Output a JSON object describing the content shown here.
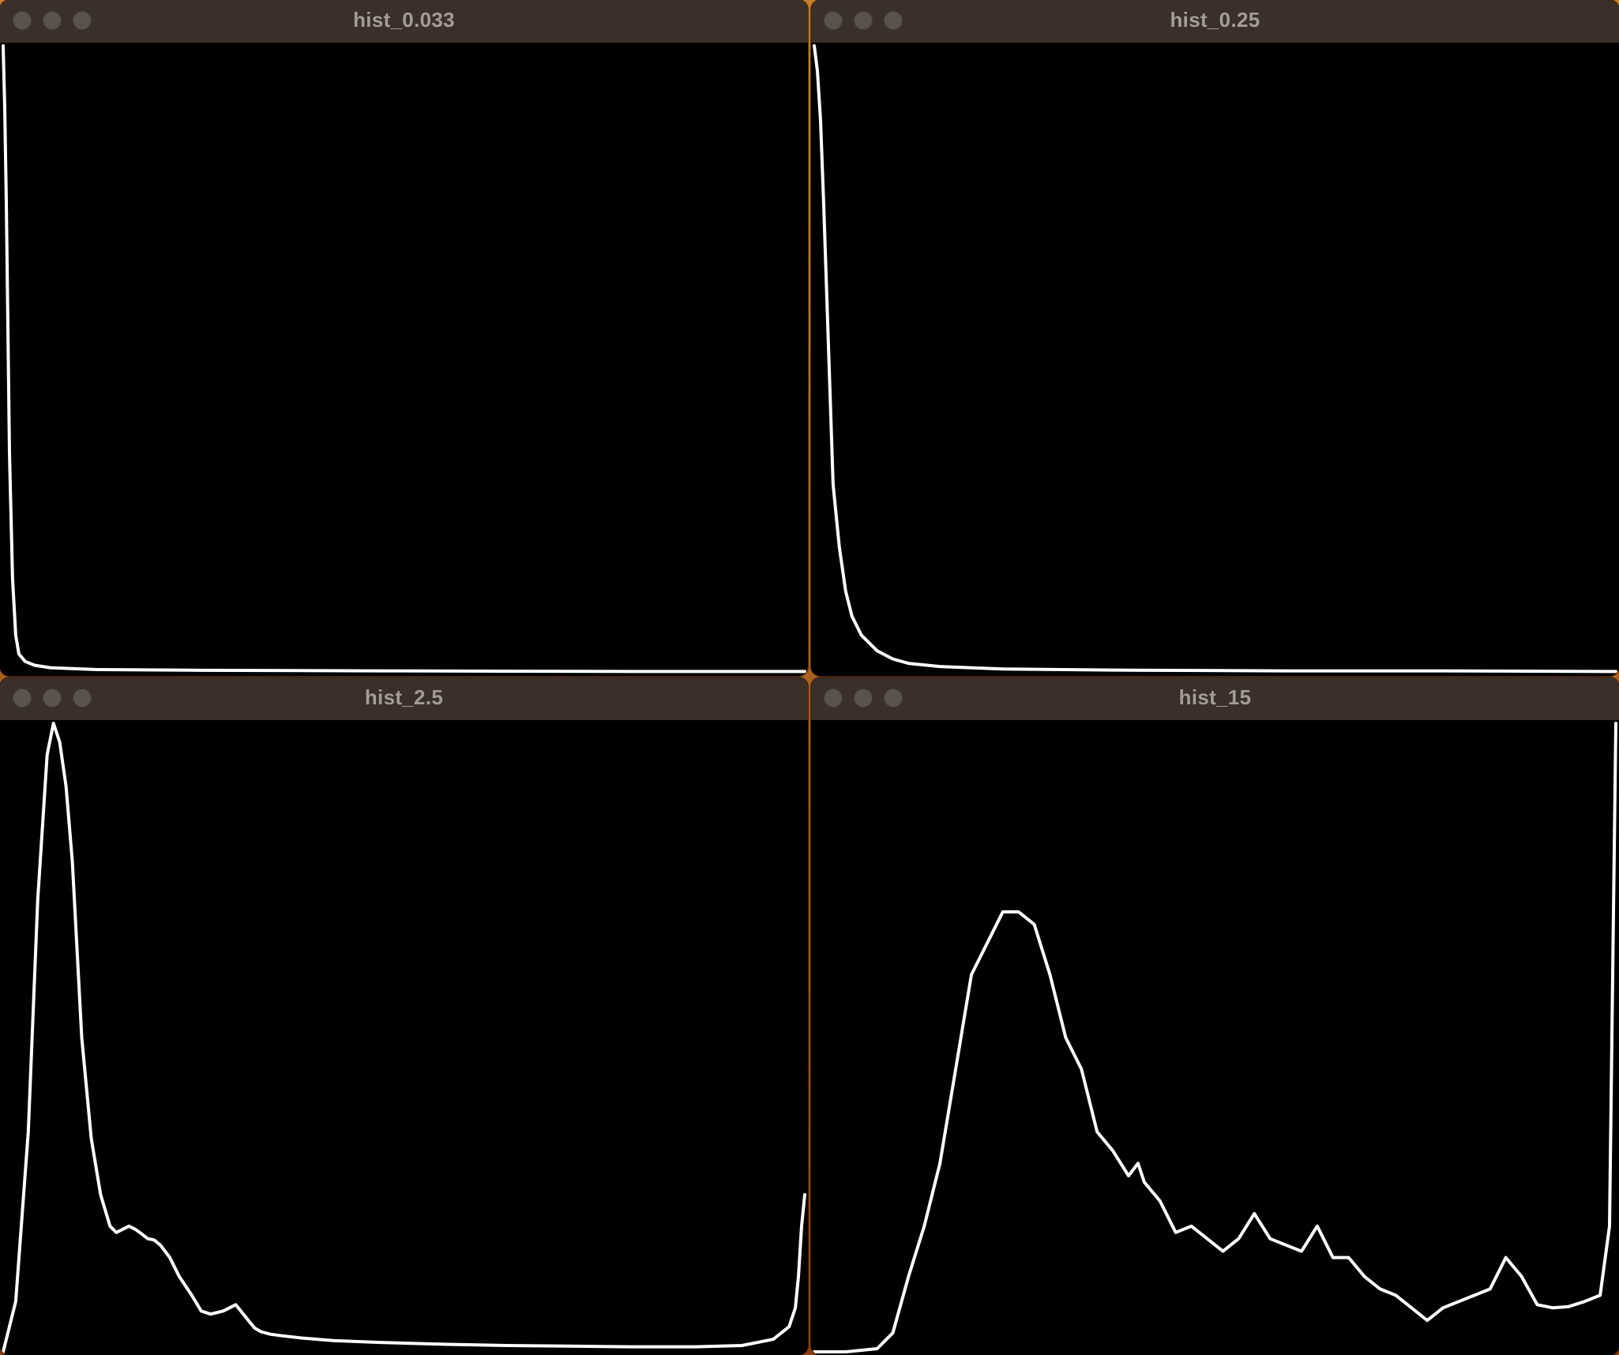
{
  "colors": {
    "titlebar": "#3a2f29",
    "title_text": "#a59c96",
    "traffic_light": "#5b524d",
    "canvas_bg": "#000000",
    "curve": "#ffffff"
  },
  "windows": [
    {
      "title": "hist_0.033",
      "chart_data": {
        "type": "line",
        "title": "",
        "xlim": [
          0,
          255
        ],
        "ylim": [
          0,
          1
        ],
        "grid": false,
        "x": [
          0,
          0.5,
          1,
          1.5,
          2,
          3,
          4,
          5,
          7,
          10,
          15,
          30,
          60,
          120,
          200,
          255
        ],
        "y": [
          1.0,
          0.9,
          0.75,
          0.55,
          0.35,
          0.15,
          0.06,
          0.03,
          0.018,
          0.012,
          0.008,
          0.005,
          0.004,
          0.003,
          0.002,
          0.002
        ]
      }
    },
    {
      "title": "hist_0.25",
      "chart_data": {
        "type": "line",
        "title": "",
        "xlim": [
          0,
          255
        ],
        "ylim": [
          0,
          1
        ],
        "grid": false,
        "x": [
          0,
          1,
          2,
          3,
          4,
          5,
          6,
          8,
          10,
          12,
          15,
          20,
          25,
          30,
          40,
          60,
          100,
          150,
          200,
          255
        ],
        "y": [
          1.0,
          0.96,
          0.88,
          0.75,
          0.6,
          0.45,
          0.3,
          0.2,
          0.13,
          0.09,
          0.06,
          0.035,
          0.022,
          0.015,
          0.01,
          0.006,
          0.004,
          0.003,
          0.003,
          0.002
        ]
      }
    },
    {
      "title": "hist_2.5",
      "chart_data": {
        "type": "line",
        "title": "",
        "xlim": [
          0,
          255
        ],
        "ylim": [
          0,
          1
        ],
        "grid": false,
        "x": [
          0,
          4,
          8,
          11,
          14,
          16,
          18,
          20,
          22,
          25,
          28,
          31,
          34,
          36,
          38,
          40,
          42,
          44,
          46,
          48,
          50,
          53,
          56,
          60,
          63,
          66,
          70,
          74,
          78,
          80,
          82,
          85,
          88,
          95,
          105,
          120,
          140,
          160,
          180,
          200,
          220,
          235,
          245,
          250,
          252,
          253,
          254,
          255
        ],
        "y": [
          0.0,
          0.08,
          0.35,
          0.72,
          0.95,
          1.0,
          0.97,
          0.9,
          0.78,
          0.5,
          0.34,
          0.25,
          0.2,
          0.19,
          0.195,
          0.2,
          0.195,
          0.188,
          0.18,
          0.178,
          0.17,
          0.15,
          0.12,
          0.09,
          0.065,
          0.06,
          0.065,
          0.075,
          0.05,
          0.038,
          0.032,
          0.028,
          0.026,
          0.022,
          0.018,
          0.015,
          0.012,
          0.01,
          0.009,
          0.008,
          0.008,
          0.01,
          0.02,
          0.04,
          0.07,
          0.12,
          0.2,
          0.25
        ]
      }
    },
    {
      "title": "hist_15",
      "chart_data": {
        "type": "line",
        "title": "",
        "xlim": [
          0,
          255
        ],
        "ylim": [
          0,
          1
        ],
        "grid": false,
        "x": [
          0,
          10,
          20,
          25,
          30,
          35,
          40,
          45,
          50,
          55,
          60,
          65,
          70,
          75,
          80,
          85,
          90,
          95,
          100,
          103,
          105,
          110,
          115,
          120,
          125,
          130,
          135,
          140,
          145,
          150,
          155,
          160,
          165,
          170,
          175,
          180,
          185,
          190,
          195,
          200,
          205,
          210,
          215,
          220,
          225,
          230,
          235,
          240,
          245,
          250,
          253,
          255
        ],
        "y": [
          0.0,
          0.0,
          0.005,
          0.03,
          0.12,
          0.2,
          0.3,
          0.45,
          0.6,
          0.65,
          0.7,
          0.7,
          0.68,
          0.6,
          0.5,
          0.45,
          0.35,
          0.32,
          0.28,
          0.3,
          0.27,
          0.24,
          0.19,
          0.2,
          0.18,
          0.16,
          0.18,
          0.22,
          0.18,
          0.17,
          0.16,
          0.2,
          0.15,
          0.15,
          0.12,
          0.1,
          0.09,
          0.07,
          0.05,
          0.07,
          0.08,
          0.09,
          0.1,
          0.15,
          0.12,
          0.075,
          0.07,
          0.072,
          0.08,
          0.09,
          0.2,
          1.0
        ]
      }
    }
  ]
}
